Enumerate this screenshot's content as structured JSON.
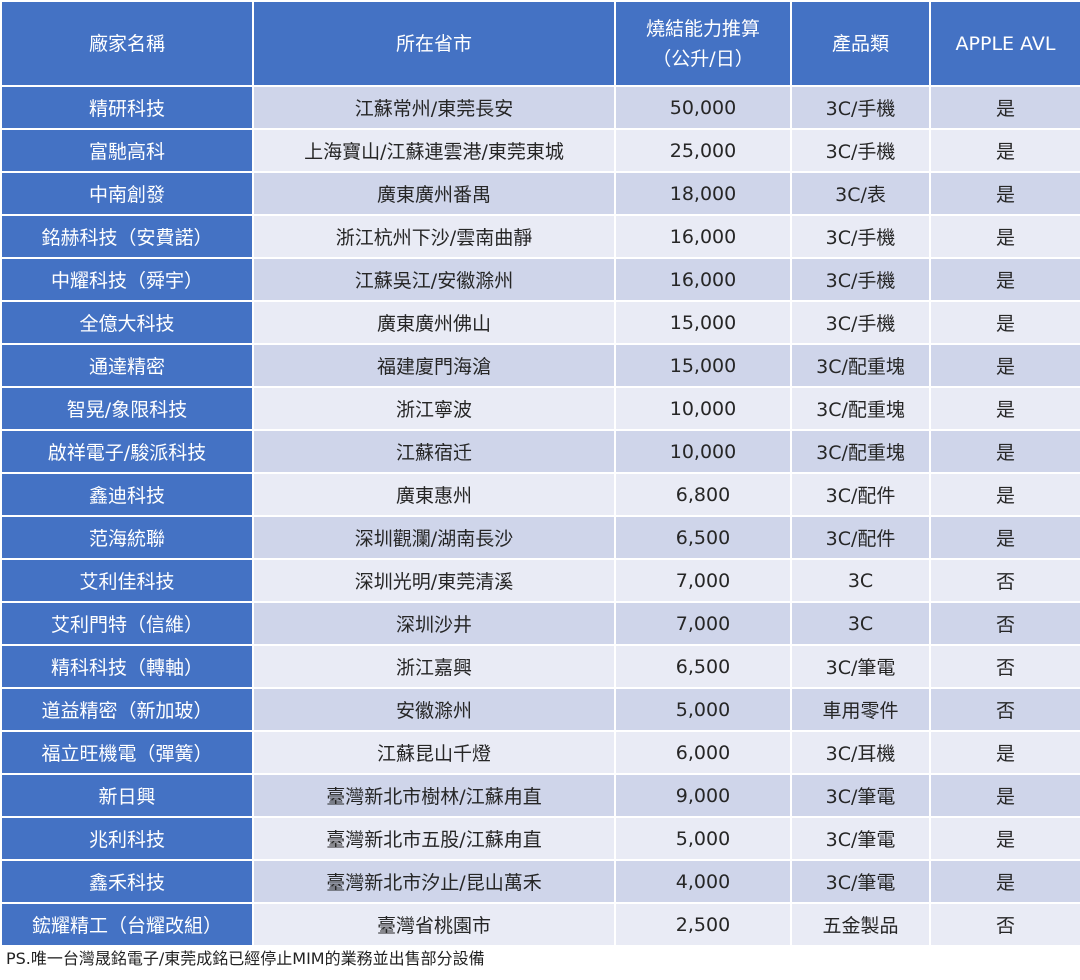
{
  "table": {
    "headers": {
      "factory": "廠家名稱",
      "location": "所在省市",
      "capacity_line1": "燒結能力推算",
      "capacity_line2": "（公升/日）",
      "category": "產品類",
      "apple_avl": "APPLE AVL"
    },
    "rows": [
      {
        "factory": "精研科技",
        "location": "江蘇常州/東莞長安",
        "capacity": "50,000",
        "category": "3C/手機",
        "avl": "是"
      },
      {
        "factory": "富馳高科",
        "location": "上海寶山/江蘇連雲港/東莞東城",
        "capacity": "25,000",
        "category": "3C/手機",
        "avl": "是"
      },
      {
        "factory": "中南創發",
        "location": "廣東廣州番禺",
        "capacity": "18,000",
        "category": "3C/表",
        "avl": "是"
      },
      {
        "factory": "銘赫科技（安費諾）",
        "location": "浙江杭州下沙/雲南曲靜",
        "capacity": "16,000",
        "category": "3C/手機",
        "avl": "是"
      },
      {
        "factory": "中耀科技（舜宇）",
        "location": "江蘇吳江/安徽滁州",
        "capacity": "16,000",
        "category": "3C/手機",
        "avl": "是"
      },
      {
        "factory": "全億大科技",
        "location": "廣東廣州佛山",
        "capacity": "15,000",
        "category": "3C/手機",
        "avl": "是"
      },
      {
        "factory": "通達精密",
        "location": "福建廈門海滄",
        "capacity": "15,000",
        "category": "3C/配重塊",
        "avl": "是"
      },
      {
        "factory": "智晃/象限科技",
        "location": "浙江寧波",
        "capacity": "10,000",
        "category": "3C/配重塊",
        "avl": "是"
      },
      {
        "factory": "啟祥電子/駿派科技",
        "location": "江蘇宿迁",
        "capacity": "10,000",
        "category": "3C/配重塊",
        "avl": "是"
      },
      {
        "factory": "鑫迪科技",
        "location": "廣東惠州",
        "capacity": "6,800",
        "category": "3C/配件",
        "avl": "是"
      },
      {
        "factory": "范海統聯",
        "location": "深圳觀瀾/湖南長沙",
        "capacity": "6,500",
        "category": "3C/配件",
        "avl": "是"
      },
      {
        "factory": "艾利佳科技",
        "location": "深圳光明/東莞清溪",
        "capacity": "7,000",
        "category": "3C",
        "avl": "否"
      },
      {
        "factory": "艾利門特（信維）",
        "location": "深圳沙井",
        "capacity": "7,000",
        "category": "3C",
        "avl": "否"
      },
      {
        "factory": "精科科技（轉軸）",
        "location": "浙江嘉興",
        "capacity": "6,500",
        "category": "3C/筆電",
        "avl": "否"
      },
      {
        "factory": "道益精密（新加玻）",
        "location": "安徽滁州",
        "capacity": "5,000",
        "category": "車用零件",
        "avl": "否"
      },
      {
        "factory": "福立旺機電（彈簧）",
        "location": "江蘇昆山千燈",
        "capacity": "6,000",
        "category": "3C/耳機",
        "avl": "是"
      },
      {
        "factory": "新日興",
        "location": "臺灣新北市樹林/江蘇甪直",
        "capacity": "9,000",
        "category": "3C/筆電",
        "avl": "是"
      },
      {
        "factory": "兆利科技",
        "location": "臺灣新北市五股/江蘇甪直",
        "capacity": "5,000",
        "category": "3C/筆電",
        "avl": "是"
      },
      {
        "factory": "鑫禾科技",
        "location": "臺灣新北市汐止/昆山萬禾",
        "capacity": "4,000",
        "category": "3C/筆電",
        "avl": "是"
      },
      {
        "factory": "鋐耀精工（台耀改組）",
        "location": "臺灣省桃園市",
        "capacity": "2,500",
        "category": "五金製品",
        "avl": "否"
      }
    ]
  },
  "footnote": "PS.唯一台灣晟銘電子/東莞成銘已經停止MIM的業務並出售部分設備",
  "colors": {
    "header_bg": "#4472c4",
    "row_odd_bg": "#cfd5ea",
    "row_even_bg": "#e9ebf5",
    "header_text": "#ffffff"
  }
}
